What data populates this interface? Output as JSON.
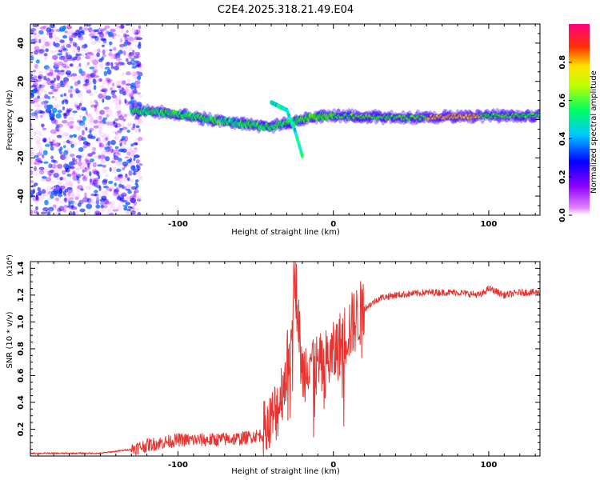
{
  "title": "C2E4.2025.318.21.49.E04",
  "colors": {
    "snr_line": "#e8332f",
    "axis": "#000000",
    "background": "#ffffff",
    "colormap": [
      "#ff00ff",
      "#0000ff",
      "#00ffff",
      "#00ff00",
      "#ffff00",
      "#ff0000",
      "#ff00a0"
    ]
  },
  "chart_data": [
    {
      "type": "heatmap",
      "name": "spectrogram",
      "xlabel": "Height of straight line (km)",
      "ylabel": "Frequency (Hz)",
      "xlim": [
        -195,
        133
      ],
      "ylim": [
        -50,
        50
      ],
      "xticks": [
        -100,
        0,
        100
      ],
      "yticks": [
        -40,
        -20,
        0,
        20,
        40
      ],
      "colorbar": {
        "label": "Normalized spectral amplitude",
        "range": [
          0.0,
          1.0
        ],
        "ticks": [
          "0.0",
          "0.2",
          "0.4",
          "0.6",
          "0.8"
        ]
      },
      "features": [
        {
          "region": "noise",
          "x_range": [
            -195,
            -128
          ],
          "y_range": [
            -50,
            50
          ]
        },
        {
          "region": "ridge",
          "x": [
            -130,
            -100,
            -80,
            -60,
            -40,
            -25,
            -15,
            0,
            50,
            100,
            133
          ],
          "y": [
            5,
            3,
            0,
            -2,
            -4,
            -1,
            1,
            2,
            1,
            2,
            2
          ]
        },
        {
          "region": "branch",
          "x": [
            -40,
            -30,
            -25,
            -20
          ],
          "y": [
            9,
            5,
            -5,
            -19
          ]
        }
      ]
    },
    {
      "type": "line",
      "name": "snr",
      "xlabel": "Height of straight line (km)",
      "ylabel": "SNR (10 * v/v)",
      "y_multiplier": "(x10⁴)",
      "xlim": [
        -195,
        133
      ],
      "ylim": [
        0,
        1.45
      ],
      "xticks": [
        -100,
        0,
        100
      ],
      "yticks": [
        0.2,
        0.4,
        0.6,
        0.8,
        1.0,
        1.2,
        1.4
      ],
      "series": [
        {
          "name": "SNR",
          "x": [
            -195,
            -150,
            -130,
            -120,
            -100,
            -80,
            -60,
            -45,
            -40,
            -35,
            -30,
            -28,
            -25,
            -22,
            -20,
            -15,
            -10,
            -5,
            0,
            5,
            10,
            20,
            30,
            40,
            60,
            80,
            95,
            100,
            110,
            120,
            133
          ],
          "y": [
            0.02,
            0.02,
            0.05,
            0.08,
            0.12,
            0.12,
            0.13,
            0.16,
            0.25,
            0.4,
            0.65,
            0.85,
            1.45,
            0.9,
            0.6,
            0.75,
            0.65,
            0.7,
            0.75,
            0.85,
            0.95,
            1.1,
            1.18,
            1.2,
            1.22,
            1.22,
            1.2,
            1.25,
            1.2,
            1.22,
            1.22
          ]
        }
      ]
    }
  ]
}
